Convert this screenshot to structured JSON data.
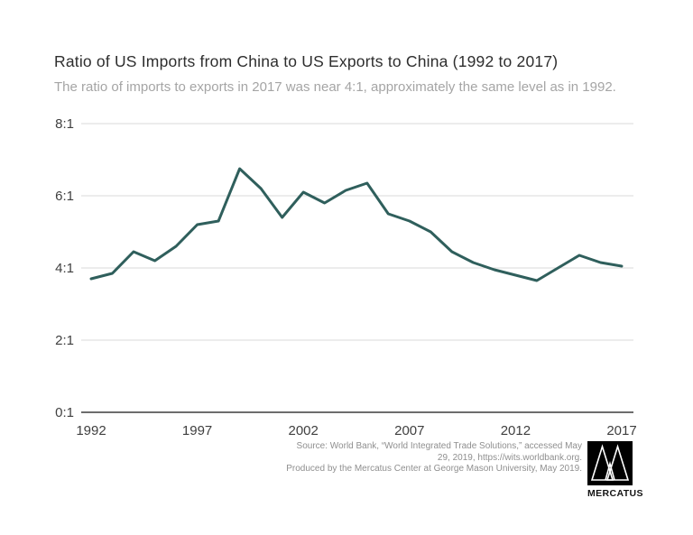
{
  "header": {
    "title": "Ratio of US Imports from China to US Exports to China (1992 to 2017)",
    "subtitle": "The ratio of imports to exports in 2017 was near 4:1, approximately the same level as in 1992."
  },
  "chart_data": {
    "type": "line",
    "title": "Ratio of US Imports from China to US Exports to China (1992 to 2017)",
    "x": [
      1992,
      1993,
      1994,
      1995,
      1996,
      1997,
      1998,
      1999,
      2000,
      2001,
      2002,
      2003,
      2004,
      2005,
      2006,
      2007,
      2008,
      2009,
      2010,
      2011,
      2012,
      2013,
      2014,
      2015,
      2016,
      2017
    ],
    "values": [
      3.7,
      3.85,
      4.45,
      4.2,
      4.6,
      5.2,
      5.3,
      6.75,
      6.2,
      5.4,
      6.1,
      5.8,
      6.15,
      6.35,
      5.5,
      5.3,
      5.0,
      4.45,
      4.15,
      3.95,
      3.8,
      3.65,
      4.0,
      4.35,
      4.15,
      4.05
    ],
    "y_ticks": [
      {
        "label": "8:1",
        "value": 8
      },
      {
        "label": "6:1",
        "value": 6
      },
      {
        "label": "4:1",
        "value": 4
      },
      {
        "label": "2:1",
        "value": 2
      },
      {
        "label": "0:1",
        "value": 0
      }
    ],
    "x_ticks": [
      "1992",
      "1997",
      "2002",
      "2007",
      "2012",
      "2017"
    ],
    "ylim": [
      0,
      8
    ],
    "xlim": [
      1992,
      2017
    ],
    "grid": true,
    "legend": false,
    "line_color": "#2f5f5c",
    "gridline_color": "#dadada",
    "axis_color": "#6d6d6d",
    "tick_label_color": "#3f3f3f"
  },
  "footer": {
    "lines": [
      "Source: World Bank, “World Integrated Trade Solutions,” accessed May",
      "29, 2019, https://wits.worldbank.org.",
      "Produced by the Mercatus Center at George Mason University, May 2019."
    ]
  },
  "logo": {
    "brand": "MERCATUS",
    "color": "#000000"
  }
}
